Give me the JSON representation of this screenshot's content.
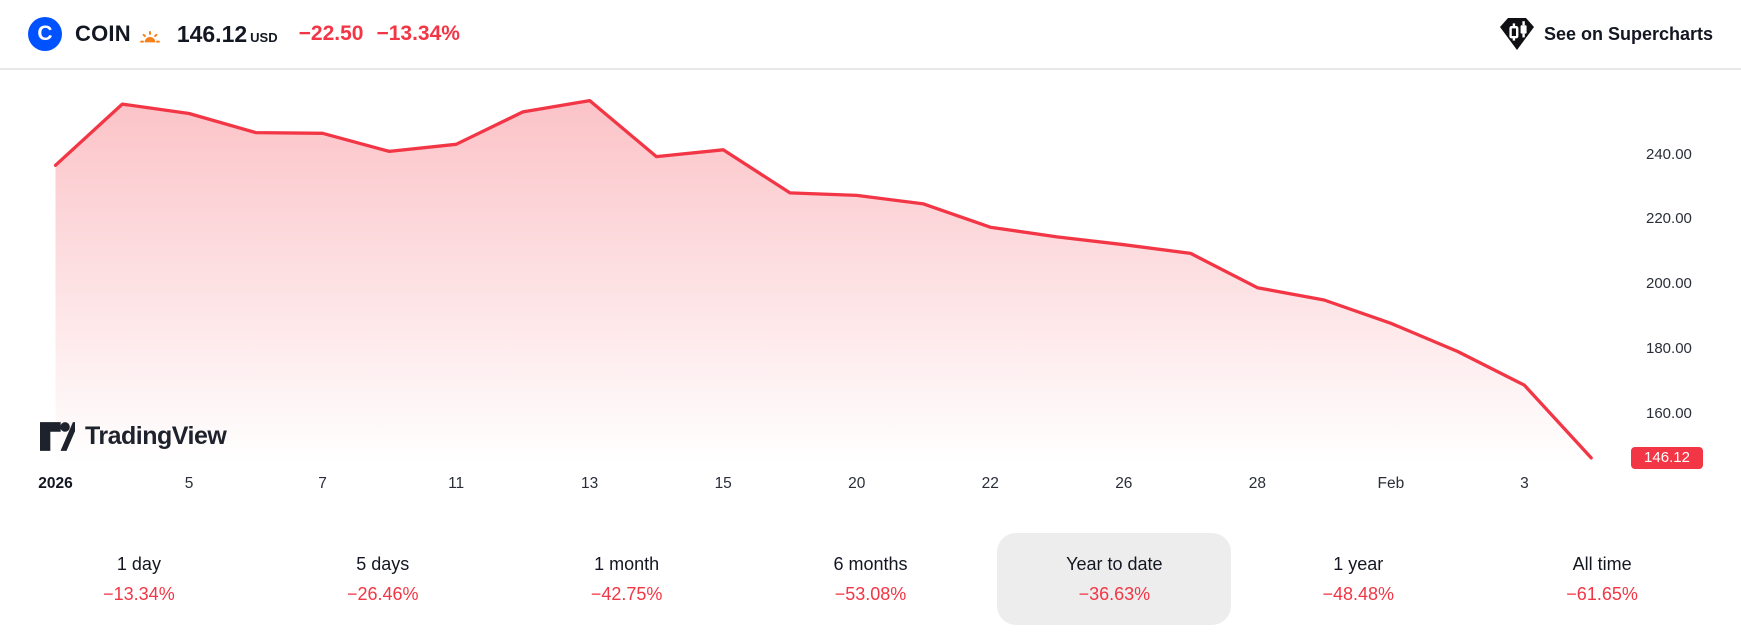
{
  "header": {
    "logo_letter": "C",
    "symbol": "COIN",
    "price": "146.12",
    "currency": "USD",
    "change_abs": "−22.50",
    "change_pct": "−13.34%",
    "market_status": "pre-market-sunrise",
    "supercharts_label": "See on Supercharts"
  },
  "watermark": {
    "text": "TradingView"
  },
  "chart_data": {
    "type": "area",
    "title": "COIN price, year to date",
    "line_color": "#f23645",
    "fill_color_top": "rgba(242,54,69,0.30)",
    "fill_color_bottom": "rgba(242,54,69,0)",
    "x_labels": [
      {
        "text": "2026",
        "index": 0,
        "bold": true
      },
      {
        "text": "5",
        "index": 2,
        "bold": false
      },
      {
        "text": "7",
        "index": 4,
        "bold": false
      },
      {
        "text": "11",
        "index": 6,
        "bold": false
      },
      {
        "text": "13",
        "index": 8,
        "bold": false
      },
      {
        "text": "15",
        "index": 10,
        "bold": false
      },
      {
        "text": "20",
        "index": 12,
        "bold": false
      },
      {
        "text": "22",
        "index": 14,
        "bold": false
      },
      {
        "text": "26",
        "index": 16,
        "bold": false
      },
      {
        "text": "28",
        "index": 18,
        "bold": false
      },
      {
        "text": "Feb",
        "index": 20,
        "bold": false
      },
      {
        "text": "3",
        "index": 22,
        "bold": false
      }
    ],
    "y_ticks": [
      {
        "label": "240.00",
        "value": 240
      },
      {
        "label": "220.00",
        "value": 220
      },
      {
        "label": "200.00",
        "value": 200
      },
      {
        "label": "180.00",
        "value": 180
      },
      {
        "label": "160.00",
        "value": 160
      }
    ],
    "values": [
      236.5,
      255.4,
      252.5,
      246.6,
      246.4,
      240.8,
      243.0,
      253.0,
      256.5,
      239.2,
      241.3,
      228.0,
      227.2,
      224.6,
      217.4,
      214.4,
      212.0,
      209.3,
      198.7,
      194.9,
      187.7,
      179.0,
      168.6,
      146.12
    ],
    "last_price": 146.12,
    "last_price_label": "146.12",
    "ylim": [
      146,
      262
    ],
    "grid": false,
    "legend": false
  },
  "periods": [
    {
      "label": "1 day",
      "change": "−13.34%",
      "selected": false
    },
    {
      "label": "5 days",
      "change": "−26.46%",
      "selected": false
    },
    {
      "label": "1 month",
      "change": "−42.75%",
      "selected": false
    },
    {
      "label": "6 months",
      "change": "−53.08%",
      "selected": false
    },
    {
      "label": "Year to date",
      "change": "−36.63%",
      "selected": true
    },
    {
      "label": "1 year",
      "change": "−48.48%",
      "selected": false
    },
    {
      "label": "All time",
      "change": "−61.65%",
      "selected": false
    }
  ],
  "colors": {
    "accent_red": "#f23645",
    "coinbase_blue": "#0052ff",
    "selected_chip_bg": "#ededee",
    "text_primary": "#131722",
    "divider": "#e8e8ea",
    "sun_orange": "#f7801a"
  }
}
